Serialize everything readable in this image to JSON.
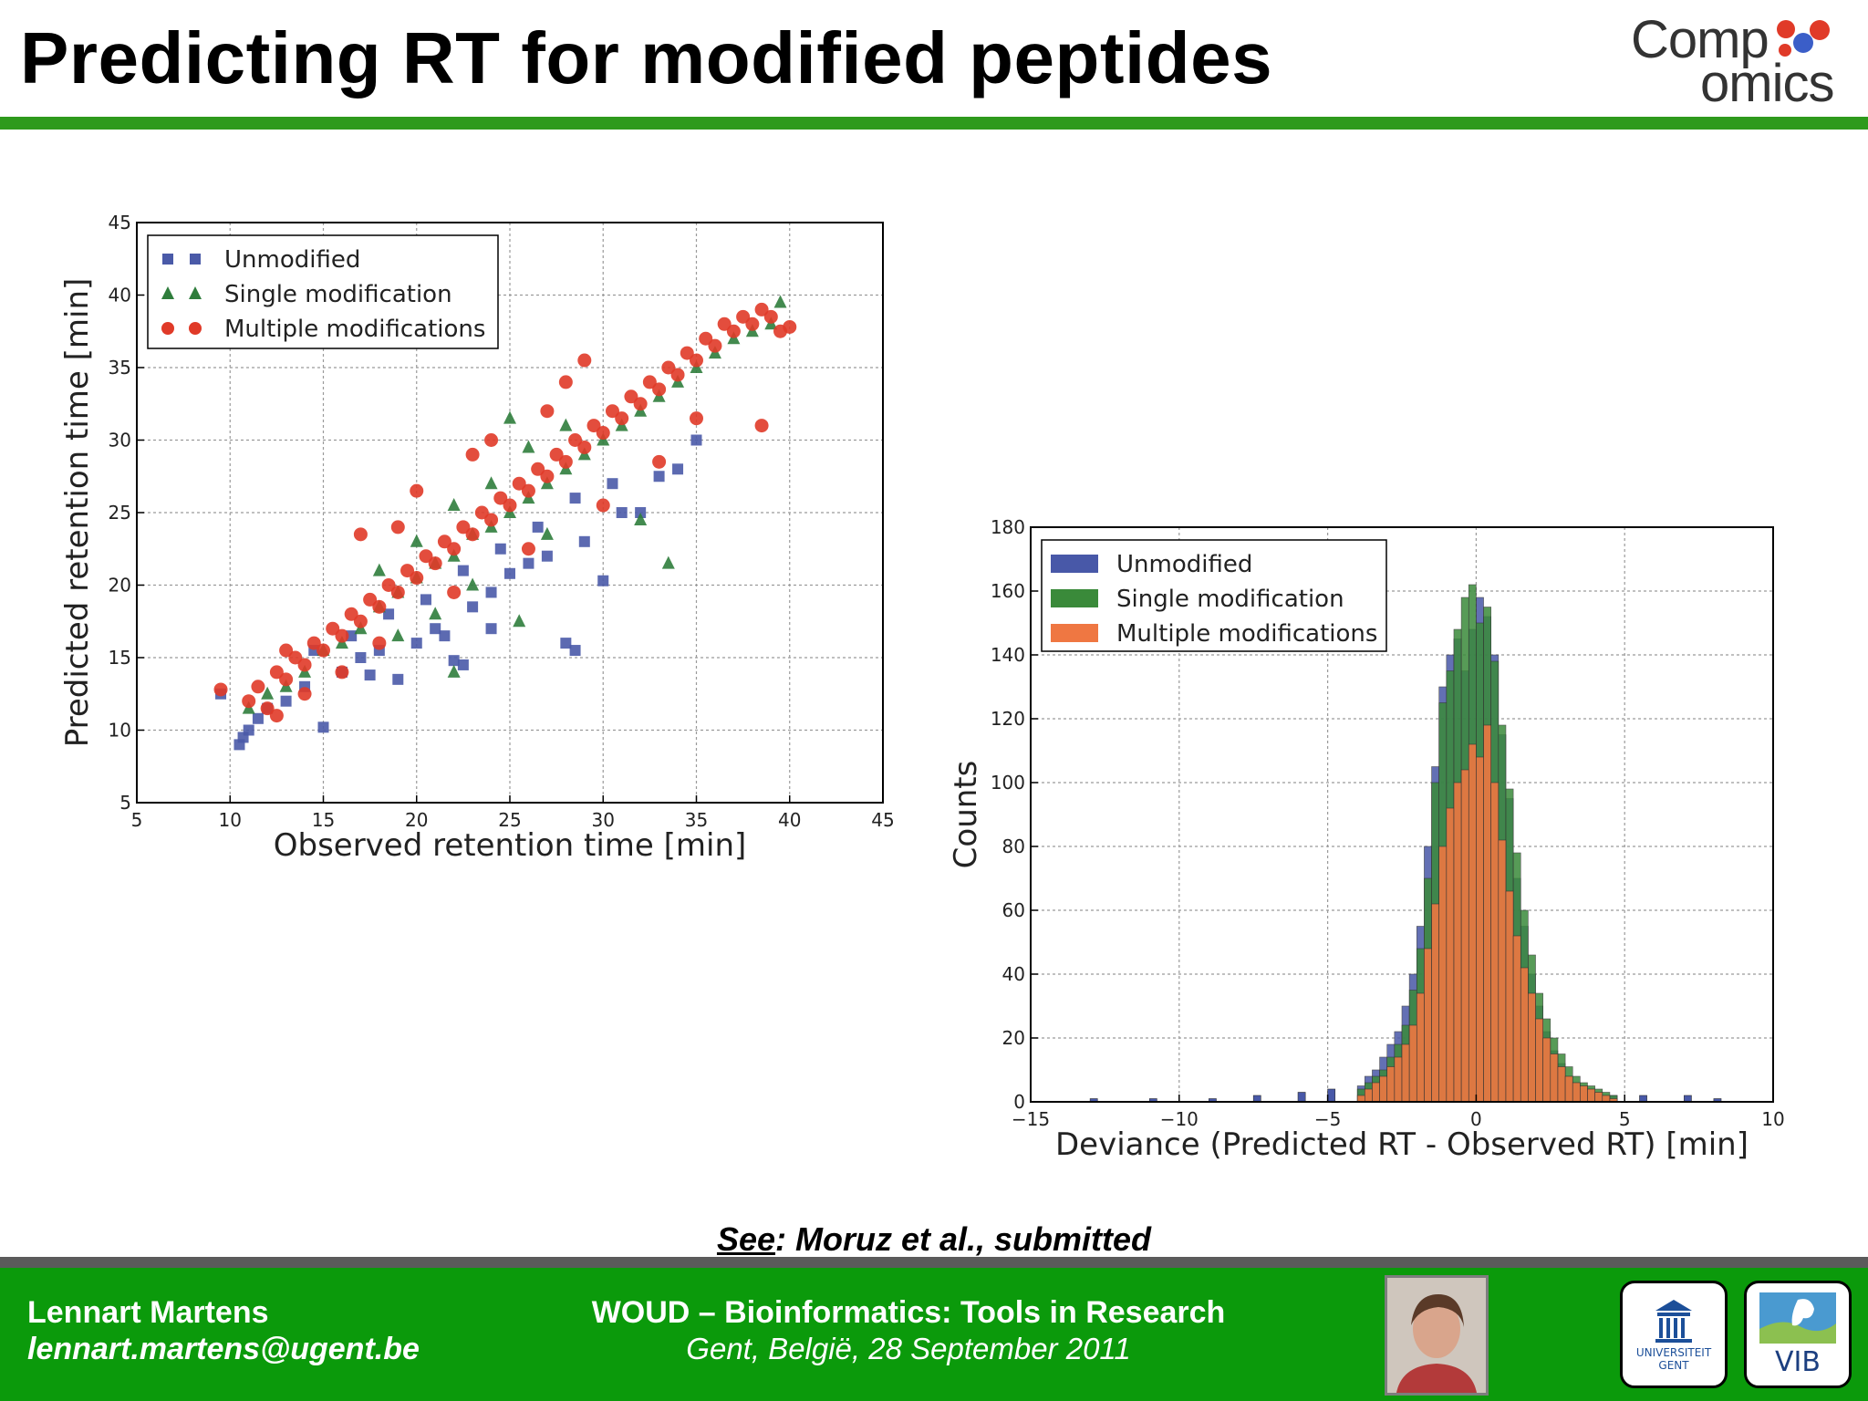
{
  "slide": {
    "title": "Predicting RT for modified peptides",
    "logo_line1": "Comp",
    "logo_line2": "omics",
    "reference_see": "See",
    "reference_rest": ": Moruz et al., submitted"
  },
  "footer": {
    "author_name": "Lennart Martens",
    "author_email": "lennart.martens@ugent.be",
    "event_title": "WOUD – Bioinformatics: Tools in Research",
    "event_place": "Gent, België, 28 September 2011",
    "ugent_logo_text": [
      "UNIVERSITEIT",
      "GENT"
    ],
    "vib_logo_text": "VIB"
  },
  "colors": {
    "accent_green": "#2e9a1c",
    "footer_green": "#0b9a0b",
    "unmodified": "#4a5aa8",
    "single": "#2f7d3c",
    "multiple": "#e03a28",
    "hist_unmodified": "#4858a8",
    "hist_single": "#3a8a3a",
    "hist_multiple": "#ef7742"
  },
  "chart_data": [
    {
      "type": "scatter",
      "xlabel": "Observed retention time [min]",
      "ylabel": "Predicted retention time [min]",
      "xlim": [
        5,
        45
      ],
      "ylim": [
        5,
        45
      ],
      "xticks": [
        5,
        10,
        15,
        20,
        25,
        30,
        35,
        40,
        45
      ],
      "yticks": [
        5,
        10,
        15,
        20,
        25,
        30,
        35,
        40,
        45
      ],
      "grid": true,
      "legend": "top-left",
      "series": [
        {
          "name": "Unmodified",
          "marker": "square",
          "points": [
            [
              9.5,
              12.5
            ],
            [
              10.5,
              9
            ],
            [
              10.7,
              9.5
            ],
            [
              11,
              10
            ],
            [
              11.5,
              10.8
            ],
            [
              12,
              11.5
            ],
            [
              13,
              12
            ],
            [
              14,
              13
            ],
            [
              15,
              10.2
            ],
            [
              16,
              14
            ],
            [
              17,
              15
            ],
            [
              18,
              15.5
            ],
            [
              19,
              13.5
            ],
            [
              20,
              16
            ],
            [
              21,
              17
            ],
            [
              22,
              14.8
            ],
            [
              22.5,
              14.5
            ],
            [
              23,
              18.5
            ],
            [
              24,
              19.5
            ],
            [
              25,
              20.8
            ],
            [
              26,
              21.5
            ],
            [
              27,
              22
            ],
            [
              28,
              16
            ],
            [
              28.5,
              15.5
            ],
            [
              29,
              23
            ],
            [
              30,
              20.3
            ],
            [
              31,
              25
            ],
            [
              32,
              25
            ],
            [
              33,
              27.5
            ],
            [
              34,
              28
            ],
            [
              35,
              30
            ],
            [
              14.5,
              15.5
            ],
            [
              16.5,
              16.5
            ],
            [
              18.5,
              18
            ],
            [
              20.5,
              19
            ],
            [
              22.5,
              21
            ],
            [
              24.5,
              22.5
            ],
            [
              26.5,
              24
            ],
            [
              28.5,
              26
            ],
            [
              30.5,
              27
            ],
            [
              17.5,
              13.8
            ],
            [
              21.5,
              16.5
            ],
            [
              24,
              17
            ]
          ]
        },
        {
          "name": "Single modification",
          "marker": "triangle",
          "points": [
            [
              11,
              11.5
            ],
            [
              12,
              12.5
            ],
            [
              13,
              13
            ],
            [
              14,
              14
            ],
            [
              15,
              15.5
            ],
            [
              16,
              16
            ],
            [
              17,
              17
            ],
            [
              18,
              18.5
            ],
            [
              19,
              19.5
            ],
            [
              20,
              20.5
            ],
            [
              21,
              21.5
            ],
            [
              22,
              14
            ],
            [
              22,
              22
            ],
            [
              23,
              23.5
            ],
            [
              24,
              24
            ],
            [
              25,
              25
            ],
            [
              25.5,
              17.5
            ],
            [
              26,
              26
            ],
            [
              27,
              27
            ],
            [
              28,
              28
            ],
            [
              29,
              29
            ],
            [
              30,
              30
            ],
            [
              31,
              31
            ],
            [
              32,
              32
            ],
            [
              32,
              24.5
            ],
            [
              33,
              33
            ],
            [
              33.5,
              21.5
            ],
            [
              34,
              34
            ],
            [
              35,
              35
            ],
            [
              36,
              36
            ],
            [
              37,
              37
            ],
            [
              38,
              37.5
            ],
            [
              39,
              38
            ],
            [
              39.5,
              39.5
            ],
            [
              18,
              21
            ],
            [
              20,
              23
            ],
            [
              22,
              25.5
            ],
            [
              24,
              27
            ],
            [
              26,
              29.5
            ],
            [
              28,
              31
            ],
            [
              19,
              16.5
            ],
            [
              21,
              18
            ],
            [
              23,
              20
            ],
            [
              27,
              23.5
            ],
            [
              25,
              31.5
            ]
          ]
        },
        {
          "name": "Multiple modifications",
          "marker": "circle",
          "points": [
            [
              9.5,
              12.8
            ],
            [
              11,
              12
            ],
            [
              11.5,
              13
            ],
            [
              12,
              11.5
            ],
            [
              12.5,
              14
            ],
            [
              13,
              13.5
            ],
            [
              13.5,
              15
            ],
            [
              14,
              14.5
            ],
            [
              14.5,
              16
            ],
            [
              15,
              15.5
            ],
            [
              15.5,
              17
            ],
            [
              16,
              16.5
            ],
            [
              16.5,
              18
            ],
            [
              17,
              17.5
            ],
            [
              17,
              23.5
            ],
            [
              17.5,
              19
            ],
            [
              18,
              18.5
            ],
            [
              18.5,
              20
            ],
            [
              19,
              19.5
            ],
            [
              19.5,
              21
            ],
            [
              20,
              20.5
            ],
            [
              20,
              26.5
            ],
            [
              20.5,
              22
            ],
            [
              21,
              21.5
            ],
            [
              21.5,
              23
            ],
            [
              22,
              22.5
            ],
            [
              22.5,
              24
            ],
            [
              23,
              23.5
            ],
            [
              23.5,
              25
            ],
            [
              24,
              24.5
            ],
            [
              24.5,
              26
            ],
            [
              25,
              25.5
            ],
            [
              25.5,
              27
            ],
            [
              26,
              26.5
            ],
            [
              26.5,
              28
            ],
            [
              27,
              27.5
            ],
            [
              27.5,
              29
            ],
            [
              28,
              28.5
            ],
            [
              28.5,
              30
            ],
            [
              29,
              29.5
            ],
            [
              29.5,
              31
            ],
            [
              30,
              30.5
            ],
            [
              30.5,
              32
            ],
            [
              31,
              31.5
            ],
            [
              31.5,
              33
            ],
            [
              32,
              32.5
            ],
            [
              32.5,
              34
            ],
            [
              33,
              33.5
            ],
            [
              33.5,
              35
            ],
            [
              34,
              34.5
            ],
            [
              34.5,
              36
            ],
            [
              35,
              35.5
            ],
            [
              35.5,
              37
            ],
            [
              36,
              36.5
            ],
            [
              36.5,
              38
            ],
            [
              37,
              37.5
            ],
            [
              37.5,
              38.5
            ],
            [
              38,
              38
            ],
            [
              38.5,
              39
            ],
            [
              39,
              38.5
            ],
            [
              39.5,
              37.5
            ],
            [
              40,
              37.8
            ],
            [
              29,
              35.5
            ],
            [
              27,
              32
            ],
            [
              23,
              29
            ],
            [
              35,
              31.5
            ],
            [
              38.5,
              31
            ],
            [
              30,
              25.5
            ],
            [
              26,
              22.5
            ],
            [
              22,
              19.5
            ],
            [
              18,
              16
            ],
            [
              16,
              14
            ],
            [
              14,
              12.5
            ],
            [
              12.5,
              11
            ],
            [
              13,
              15.5
            ],
            [
              19,
              24
            ],
            [
              24,
              30
            ],
            [
              28,
              34
            ],
            [
              33,
              28.5
            ]
          ]
        }
      ]
    },
    {
      "type": "bar",
      "subtype": "stacked-histogram",
      "xlabel": "Deviance (Predicted RT - Observed RT) [min]",
      "ylabel": "Counts",
      "xlim": [
        -15,
        10
      ],
      "ylim": [
        0,
        180
      ],
      "xticks": [
        -15,
        -10,
        -5,
        0,
        5,
        10
      ],
      "yticks": [
        0,
        20,
        40,
        60,
        80,
        100,
        120,
        140,
        160,
        180
      ],
      "grid": true,
      "legend": "top-left",
      "bin_width": 0.25,
      "bins": [
        -4,
        -3.75,
        -3.5,
        -3.25,
        -3,
        -2.75,
        -2.5,
        -2.25,
        -2,
        -1.75,
        -1.5,
        -1.25,
        -1,
        -0.75,
        -0.5,
        -0.25,
        0,
        0.25,
        0.5,
        0.75,
        1,
        1.25,
        1.5,
        1.75,
        2,
        2.25,
        2.5,
        2.75,
        3,
        3.25,
        3.5,
        3.75,
        4,
        4.25,
        4.5
      ],
      "series": [
        {
          "name": "Unmodified",
          "values": [
            5,
            8,
            10,
            14,
            18,
            22,
            30,
            40,
            55,
            80,
            105,
            130,
            140,
            145,
            135,
            148,
            158,
            152,
            140,
            115,
            95,
            70,
            55,
            40,
            30,
            22,
            16,
            12,
            8,
            6,
            5,
            4,
            3,
            2,
            2
          ]
        },
        {
          "name": "Single modification",
          "values": [
            4,
            6,
            8,
            10,
            14,
            18,
            24,
            35,
            48,
            70,
            100,
            125,
            135,
            148,
            158,
            162,
            150,
            155,
            138,
            118,
            98,
            78,
            60,
            46,
            34,
            26,
            20,
            15,
            11,
            8,
            6,
            5,
            4,
            3,
            2
          ]
        },
        {
          "name": "Multiple modifications",
          "values": [
            2,
            4,
            6,
            8,
            11,
            14,
            18,
            24,
            34,
            48,
            62,
            80,
            92,
            100,
            104,
            112,
            108,
            118,
            100,
            82,
            66,
            52,
            42,
            34,
            26,
            20,
            15,
            11,
            8,
            6,
            5,
            4,
            3,
            2,
            1
          ]
        }
      ],
      "sparse_tail": [
        [
          -13,
          1
        ],
        [
          -11,
          1
        ],
        [
          -9,
          1
        ],
        [
          -7.5,
          2
        ],
        [
          -6,
          3
        ],
        [
          -5,
          4
        ],
        [
          5.5,
          2
        ],
        [
          7,
          2
        ],
        [
          8,
          1
        ]
      ]
    }
  ]
}
